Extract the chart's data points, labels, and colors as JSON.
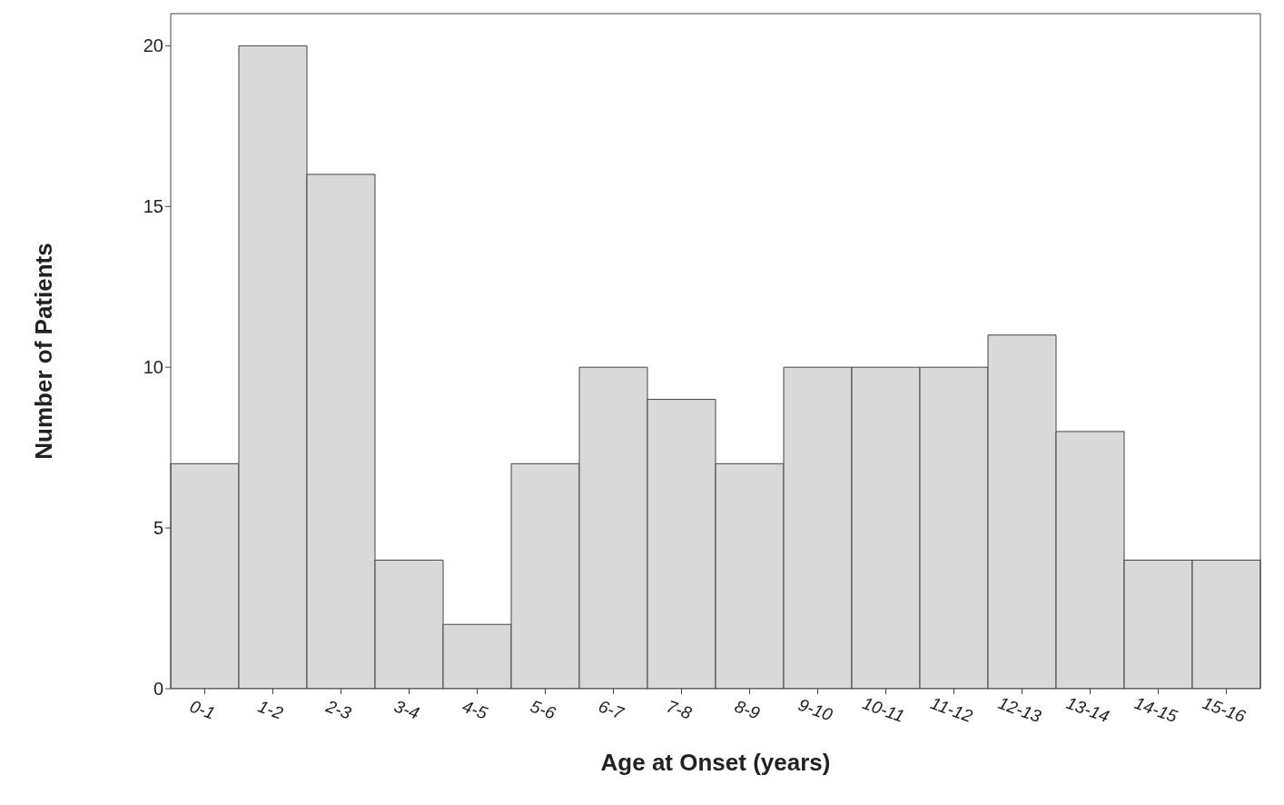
{
  "chart_data": {
    "type": "bar",
    "xlabel": "Age at Onset (years)",
    "ylabel": "Number of Patients",
    "categories": [
      "0-1",
      "1-2",
      "2-3",
      "3-4",
      "4-5",
      "5-6",
      "6-7",
      "7-8",
      "8-9",
      "9-10",
      "10-11",
      "11-12",
      "12-13",
      "13-14",
      "14-15",
      "15-16"
    ],
    "values": [
      7,
      20,
      16,
      4,
      2,
      7,
      10,
      9,
      7,
      10,
      10,
      10,
      11,
      8,
      4,
      4
    ],
    "color": "#d9d9d9",
    "ylim": [
      0,
      21
    ],
    "yticks": [
      0,
      5,
      10,
      15,
      20
    ]
  }
}
